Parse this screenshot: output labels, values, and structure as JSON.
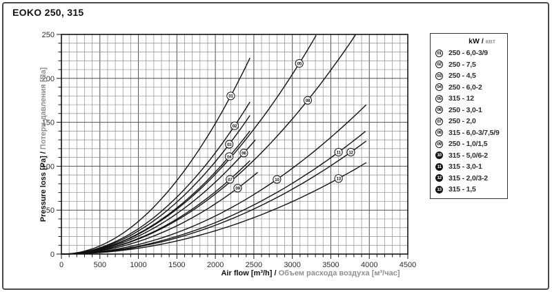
{
  "page": {
    "title": "EOKO 250, 315"
  },
  "legend": {
    "header_kw": "kW /",
    "header_kvt": "квт"
  },
  "chart_data": {
    "type": "line",
    "title": "EOKO 250, 315",
    "xlabel_en": "Air flow [m³/h] /",
    "xlabel_ru": "Объем расхода воздуха [м³/час]",
    "ylabel_en": "Pressure loss [Pa] /",
    "ylabel_ru": "Потери давления [Па]",
    "xlim": [
      0,
      4500
    ],
    "ylim": [
      0,
      250
    ],
    "x_ticks": [
      0,
      500,
      1000,
      1500,
      2000,
      2500,
      3000,
      3500,
      4000,
      4500
    ],
    "y_ticks": [
      0,
      50,
      100,
      150,
      200,
      250
    ],
    "x_minor_step": 100,
    "y_minor_step": 10,
    "grid": true,
    "legend_position": "right",
    "curve_model": "pressure loss grows quadratically from origin: y = k·x², k fitted through marker point, drawn from x=0 to end.x",
    "series": [
      {
        "id": "01",
        "label": "250 - 6,0-3/9",
        "marker": {
          "x": 2200,
          "y": 180
        },
        "end": {
          "x": 2450,
          "y": 223
        }
      },
      {
        "id": "02",
        "label": "250 - 7,5",
        "marker": {
          "x": 2250,
          "y": 146
        },
        "end": {
          "x": 2450,
          "y": 173
        }
      },
      {
        "id": "03",
        "label": "250 - 4,5",
        "marker": {
          "x": 2180,
          "y": 125
        },
        "end": {
          "x": 2450,
          "y": 158
        }
      },
      {
        "id": "04",
        "label": "250 - 6,0-2",
        "marker": {
          "x": 2180,
          "y": 111
        },
        "end": {
          "x": 2450,
          "y": 140
        }
      },
      {
        "id": "05",
        "label": "315 - 12",
        "marker": {
          "x": 3090,
          "y": 217
        },
        "end": {
          "x": 3310,
          "y": 249
        }
      },
      {
        "id": "06",
        "label": "250 - 3,0-1",
        "marker": {
          "x": 2370,
          "y": 115
        },
        "end": {
          "x": 2520,
          "y": 130
        }
      },
      {
        "id": "07",
        "label": "250 - 2,0",
        "marker": {
          "x": 2190,
          "y": 85
        },
        "end": {
          "x": 2450,
          "y": 106
        }
      },
      {
        "id": "08",
        "label": "315 - 6,0-3/7,5/9",
        "marker": {
          "x": 3200,
          "y": 175
        },
        "end": {
          "x": 3820,
          "y": 249
        }
      },
      {
        "id": "09",
        "label": "250 - 1,0/1,5",
        "marker": {
          "x": 2290,
          "y": 75
        },
        "end": {
          "x": 2550,
          "y": 93
        }
      },
      {
        "id": "10",
        "label": "315 - 5,0/6-2",
        "marker": {
          "x": 2800,
          "y": 85
        },
        "end": {
          "x": 3960,
          "y": 170
        }
      },
      {
        "id": "11",
        "label": "315 - 3,0-1",
        "marker": {
          "x": 3600,
          "y": 116
        },
        "end": {
          "x": 3950,
          "y": 140
        }
      },
      {
        "id": "12",
        "label": "315 - 2,0/3-2",
        "marker": {
          "x": 3760,
          "y": 116
        },
        "end": {
          "x": 3960,
          "y": 129
        }
      },
      {
        "id": "13",
        "label": "315 - 1,5",
        "marker": {
          "x": 3600,
          "y": 86
        },
        "end": {
          "x": 3960,
          "y": 104
        }
      }
    ],
    "colors": {
      "curve": "#111111",
      "grid_minor": "#8c8c8c",
      "grid_major": "#4f4f4f",
      "plot_border": "#111111",
      "tick_label": "#2b2b2b",
      "ru_text": "#8f8f8f"
    }
  }
}
